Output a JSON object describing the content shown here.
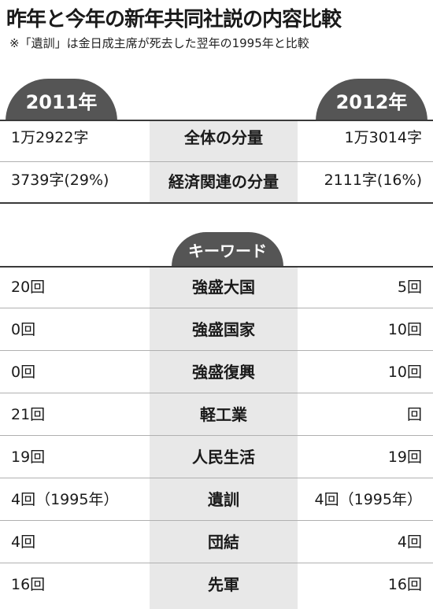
{
  "title": "昨年と今年の新年共同社説の内容比較",
  "note": "※「遺訓」は金日成主席が死去した翌年の1995年と比較",
  "years": {
    "left": "2011年",
    "right": "2012年"
  },
  "summary_rows": [
    {
      "left": "1万2922字",
      "label": "全体の分量",
      "right": "1万3014字"
    },
    {
      "left": "3739字(29%)",
      "label": "経済関連の分量",
      "right": "2111字(16%)"
    }
  ],
  "keywords_header": "キーワード",
  "keyword_rows": [
    {
      "left": "20回",
      "label": "強盛大国",
      "right": "5回"
    },
    {
      "left": "0回",
      "label": "強盛国家",
      "right": "10回"
    },
    {
      "left": "0回",
      "label": "強盛復興",
      "right": "10回"
    },
    {
      "left": "21回",
      "label": "軽工業",
      "right": "回"
    },
    {
      "left": "19回",
      "label": "人民生活",
      "right": "19回"
    },
    {
      "left": "4回（1995年）",
      "label": "遺訓",
      "right": "4回（1995年）"
    },
    {
      "left": "4回",
      "label": "団結",
      "right": "4回"
    },
    {
      "left": "16回",
      "label": "先軍",
      "right": "16回"
    }
  ]
}
